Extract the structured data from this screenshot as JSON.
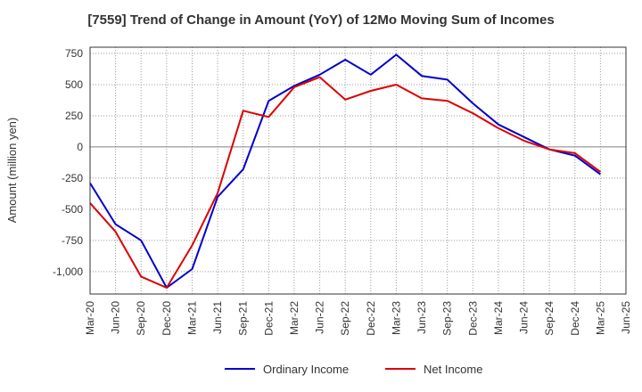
{
  "chart_data": {
    "type": "line",
    "title": "[7559]  Trend of Change in Amount (YoY) of 12Mo Moving Sum of Incomes",
    "ylabel": "Amount (million yen)",
    "xlabel": "",
    "x": [
      "Mar-20",
      "Jun-20",
      "Sep-20",
      "Dec-20",
      "Mar-21",
      "Jun-21",
      "Sep-21",
      "Dec-21",
      "Mar-22",
      "Jun-22",
      "Sep-22",
      "Dec-22",
      "Mar-23",
      "Jun-23",
      "Sep-23",
      "Dec-23",
      "Mar-24",
      "Jun-24",
      "Sep-24",
      "Dec-24",
      "Mar-25",
      "Jun-25"
    ],
    "yticks": [
      750,
      500,
      250,
      0,
      -250,
      -500,
      -750,
      -1000
    ],
    "ytick_labels": [
      "750",
      "500",
      "250",
      "0",
      "-250",
      "-500",
      "-750",
      "-1,000"
    ],
    "ylim": [
      -1180,
      800
    ],
    "grid": true,
    "legend_position": "bottom",
    "series": [
      {
        "name": "Ordinary Income",
        "color": "#0000cc",
        "values": [
          -290,
          -620,
          -750,
          -1130,
          -980,
          -400,
          -180,
          370,
          490,
          580,
          700,
          580,
          740,
          570,
          540,
          350,
          180,
          80,
          -20,
          -70,
          -220,
          null
        ]
      },
      {
        "name": "Net Income",
        "color": "#dd0000",
        "values": [
          -450,
          -680,
          -1040,
          -1130,
          -790,
          -370,
          290,
          240,
          480,
          560,
          380,
          450,
          500,
          390,
          370,
          270,
          150,
          50,
          -20,
          -50,
          -200,
          null
        ]
      }
    ]
  }
}
